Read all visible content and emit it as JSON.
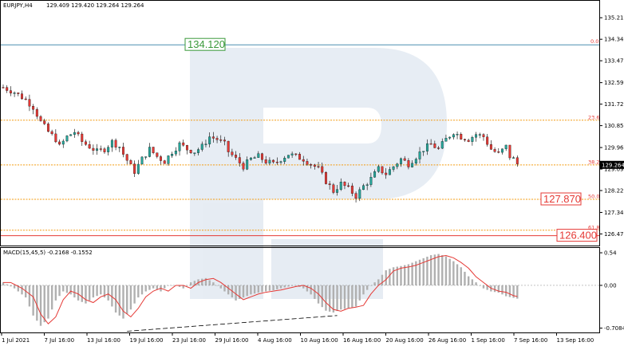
{
  "header": {
    "symbol_tf": "EURJPY,H4",
    "ohlc": "129.409 129.420 129.264 129.264"
  },
  "macd_header": "MACD(15,45,5) -0.2168 -0.1552",
  "price_axis": {
    "min": 126.0,
    "max": 135.9,
    "ticks": [
      "135.215",
      "134.345",
      "133.475",
      "132.590",
      "131.720",
      "130.850",
      "129.965",
      "129.095",
      "128.225",
      "127.340",
      "126.470"
    ],
    "current_price": "129.264"
  },
  "macd_axis": {
    "min": -0.78,
    "max": 0.62,
    "ticks": [
      "0.54",
      "0.00",
      "-0.7084"
    ]
  },
  "time_axis": [
    "1 Jul 2021",
    "7 Jul 16:00",
    "13 Jul 16:00",
    "19 Jul 16:00",
    "23 Jul 16:00",
    "29 Jul 16:00",
    "4 Aug 16:00",
    "10 Aug 16:00",
    "16 Aug 16:00",
    "20 Aug 16:00",
    "26 Aug 16:00",
    "1 Sep 16:00",
    "7 Sep 16:00",
    "13 Sep 16:00"
  ],
  "levels": [
    {
      "name": "top",
      "price": 134.12,
      "color": "#4a8fb0",
      "box": "134.120",
      "box_color": "#3a9a3a"
    },
    {
      "name": "fib-23.6",
      "price": 131.07,
      "color": "#f39c12",
      "fib": "23.6"
    },
    {
      "name": "fib-38.2",
      "price": 129.26,
      "color": "#f39c12",
      "fib": "38.2"
    },
    {
      "name": "fib-50.0",
      "price": 127.87,
      "color": "#f39c12",
      "fib": "50.0",
      "box": "127.870",
      "box_color": "#e53935"
    },
    {
      "name": "fib-61.8",
      "price": 126.62,
      "color": "#f39c12",
      "fib": "61.8"
    },
    {
      "name": "bottom",
      "price": 126.4,
      "color": "#e53935",
      "box": "126.400",
      "box_color": "#e53935"
    }
  ],
  "fib_zero_label": "0.0",
  "colors": {
    "bull": "#26a69a",
    "bear": "#e53935",
    "macd_hist": "#b0b0b0",
    "signal": "#e53935"
  },
  "price_path": [
    [
      0,
      132.4
    ],
    [
      3,
      132.2
    ],
    [
      6,
      131.9
    ],
    [
      8,
      131.6
    ],
    [
      10,
      131.0
    ],
    [
      12,
      130.6
    ],
    [
      14,
      130.3
    ],
    [
      15,
      130.0
    ],
    [
      17,
      130.4
    ],
    [
      19,
      130.6
    ],
    [
      21,
      130.2
    ],
    [
      23,
      130.0
    ],
    [
      25,
      129.8
    ],
    [
      27,
      129.9
    ],
    [
      29,
      130.2
    ],
    [
      31,
      130.0
    ],
    [
      32,
      129.7
    ],
    [
      34,
      129.2
    ],
    [
      35,
      129.0
    ],
    [
      37,
      129.5
    ],
    [
      39,
      129.9
    ],
    [
      41,
      129.6
    ],
    [
      43,
      129.4
    ],
    [
      45,
      129.8
    ],
    [
      47,
      130.1
    ],
    [
      49,
      129.9
    ],
    [
      51,
      129.8
    ],
    [
      53,
      130.0
    ],
    [
      55,
      130.4
    ],
    [
      57,
      130.3
    ],
    [
      59,
      130.1
    ],
    [
      60,
      129.8
    ],
    [
      62,
      129.5
    ],
    [
      64,
      129.2
    ],
    [
      66,
      129.5
    ],
    [
      68,
      129.6
    ],
    [
      70,
      129.4
    ],
    [
      72,
      129.3
    ],
    [
      74,
      129.5
    ],
    [
      76,
      129.7
    ],
    [
      78,
      129.6
    ],
    [
      80,
      129.5
    ],
    [
      82,
      129.3
    ],
    [
      84,
      129.1
    ],
    [
      86,
      128.6
    ],
    [
      88,
      128.2
    ],
    [
      90,
      128.5
    ],
    [
      92,
      128.3
    ],
    [
      94,
      128.0
    ],
    [
      96,
      128.4
    ],
    [
      98,
      128.7
    ],
    [
      100,
      129.1
    ],
    [
      102,
      128.9
    ],
    [
      104,
      129.2
    ],
    [
      106,
      129.5
    ],
    [
      108,
      129.3
    ],
    [
      110,
      129.6
    ],
    [
      112,
      129.9
    ],
    [
      114,
      130.1
    ],
    [
      116,
      129.9
    ],
    [
      118,
      130.3
    ],
    [
      120,
      130.6
    ],
    [
      122,
      130.4
    ],
    [
      124,
      130.3
    ],
    [
      126,
      130.5
    ],
    [
      128,
      130.4
    ],
    [
      130,
      129.9
    ],
    [
      132,
      129.7
    ],
    [
      134,
      130.0
    ],
    [
      135,
      129.6
    ],
    [
      136,
      129.5
    ],
    [
      137,
      129.3
    ]
  ],
  "macd_path": [
    [
      0,
      0.05
    ],
    [
      3,
      -0.05
    ],
    [
      6,
      -0.2
    ],
    [
      8,
      -0.5
    ],
    [
      10,
      -0.67
    ],
    [
      12,
      -0.55
    ],
    [
      14,
      -0.25
    ],
    [
      16,
      -0.1
    ],
    [
      18,
      -0.15
    ],
    [
      20,
      -0.25
    ],
    [
      22,
      -0.3
    ],
    [
      24,
      -0.2
    ],
    [
      26,
      -0.15
    ],
    [
      28,
      -0.25
    ],
    [
      30,
      -0.45
    ],
    [
      32,
      -0.55
    ],
    [
      34,
      -0.4
    ],
    [
      36,
      -0.2
    ],
    [
      38,
      -0.1
    ],
    [
      40,
      -0.05
    ],
    [
      42,
      -0.1
    ],
    [
      44,
      0.0
    ],
    [
      46,
      0.0
    ],
    [
      48,
      -0.05
    ],
    [
      50,
      0.05
    ],
    [
      52,
      0.1
    ],
    [
      54,
      0.12
    ],
    [
      56,
      0.05
    ],
    [
      58,
      -0.05
    ],
    [
      60,
      -0.15
    ],
    [
      62,
      -0.25
    ],
    [
      64,
      -0.2
    ],
    [
      66,
      -0.15
    ],
    [
      68,
      -0.12
    ],
    [
      70,
      -0.1
    ],
    [
      72,
      -0.08
    ],
    [
      74,
      -0.05
    ],
    [
      76,
      -0.02
    ],
    [
      78,
      0.0
    ],
    [
      80,
      -0.05
    ],
    [
      82,
      -0.15
    ],
    [
      84,
      -0.3
    ],
    [
      86,
      -0.42
    ],
    [
      88,
      -0.45
    ],
    [
      90,
      -0.4
    ],
    [
      92,
      -0.38
    ],
    [
      94,
      -0.35
    ],
    [
      96,
      -0.15
    ],
    [
      98,
      0.0
    ],
    [
      100,
      0.1
    ],
    [
      102,
      0.25
    ],
    [
      104,
      0.3
    ],
    [
      106,
      0.32
    ],
    [
      108,
      0.35
    ],
    [
      110,
      0.4
    ],
    [
      112,
      0.45
    ],
    [
      114,
      0.5
    ],
    [
      116,
      0.52
    ],
    [
      118,
      0.48
    ],
    [
      120,
      0.4
    ],
    [
      122,
      0.3
    ],
    [
      124,
      0.15
    ],
    [
      126,
      0.05
    ],
    [
      128,
      -0.05
    ],
    [
      130,
      -0.1
    ],
    [
      132,
      -0.12
    ],
    [
      134,
      -0.18
    ],
    [
      137,
      -0.22
    ]
  ],
  "divergence": {
    "from": [
      33,
      -0.76
    ],
    "to": [
      89,
      -0.5
    ]
  }
}
